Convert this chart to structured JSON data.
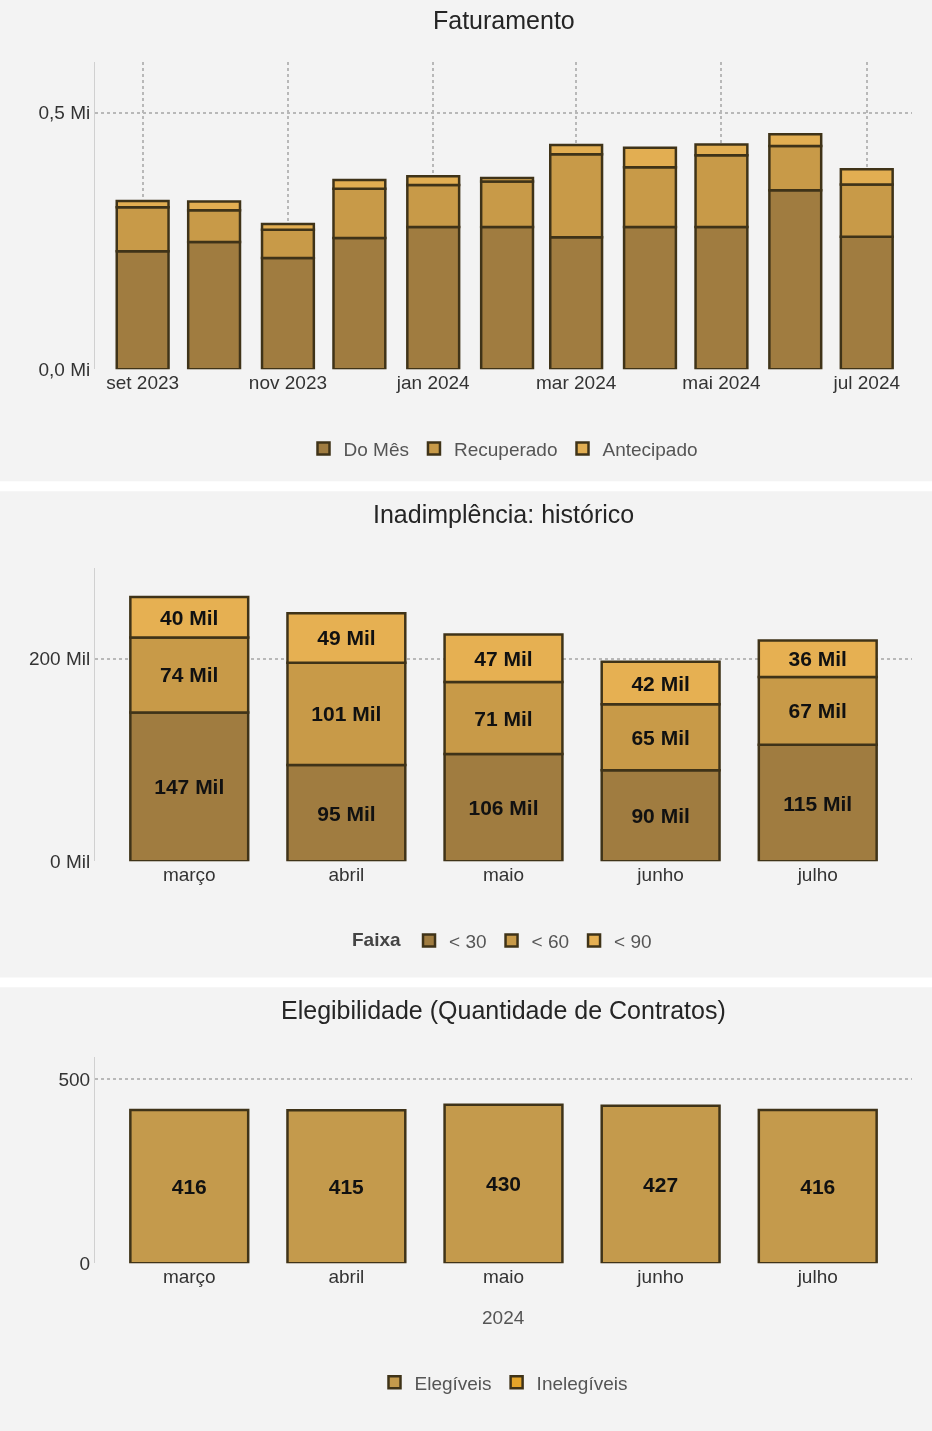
{
  "chart_data": [
    {
      "type": "bar",
      "title": "Faturamento",
      "stacked": true,
      "grid": true,
      "legend": "bottom",
      "x": [
        "2023-09",
        "2023-10",
        "2023-11",
        "2023-12",
        "2024-01",
        "2024-02",
        "2024-03",
        "2024-04",
        "2024-05",
        "2024-06",
        "2024-07"
      ],
      "xlim": [
        "2023-08-12",
        "2024-07-20"
      ],
      "xticks": [
        {
          "value": "2023-09",
          "label": "set 2023"
        },
        {
          "value": "2023-11",
          "label": "nov 2023"
        },
        {
          "value": "2024-01",
          "label": "jan 2024"
        },
        {
          "value": "2024-03",
          "label": "mar 2024"
        },
        {
          "value": "2024-05",
          "label": "mai 2024"
        },
        {
          "value": "2024-07",
          "label": "jul 2024"
        }
      ],
      "ylim": [
        0,
        0.6
      ],
      "yticks": [
        {
          "value": 0,
          "label": "0,0 Mi"
        },
        {
          "value": 0.5,
          "label": "0,5 Mi"
        }
      ],
      "series": [
        {
          "name": "Do Mês",
          "color": "#a07c40",
          "values": [
            0.23,
            0.248,
            0.217,
            0.256,
            0.277,
            0.277,
            0.257,
            0.277,
            0.277,
            0.349,
            0.258
          ]
        },
        {
          "name": "Recuperado",
          "color": "#c89a48",
          "values": [
            0.086,
            0.062,
            0.055,
            0.096,
            0.082,
            0.089,
            0.162,
            0.117,
            0.14,
            0.086,
            0.102
          ]
        },
        {
          "name": "Antecipado",
          "color": "#e2ae52",
          "values": [
            0.012,
            0.017,
            0.011,
            0.017,
            0.017,
            0.007,
            0.018,
            0.038,
            0.021,
            0.023,
            0.03
          ]
        }
      ]
    },
    {
      "type": "bar",
      "title": "Inadimplência: histórico",
      "stacked": true,
      "grid": "y",
      "legend": "bottom",
      "legend_title": "Faixa",
      "categories": [
        "março",
        "abril",
        "maio",
        "junho",
        "julho"
      ],
      "ylim": [
        0,
        290
      ],
      "yticks": [
        {
          "value": 0,
          "label": "0 Mil"
        },
        {
          "value": 200,
          "label": "200 Mil"
        }
      ],
      "series": [
        {
          "name": "< 30",
          "color": "#a07c40",
          "values": [
            147,
            95,
            106,
            90,
            115
          ],
          "value_labels": [
            "147 Mil",
            "95 Mil",
            "106 Mil",
            "90 Mil",
            "115 Mil"
          ]
        },
        {
          "name": "< 60",
          "color": "#c89a48",
          "values": [
            74,
            101,
            71,
            65,
            67
          ],
          "value_labels": [
            "74 Mil",
            "101 Mil",
            "71 Mil",
            "65 Mil",
            "67 Mil"
          ]
        },
        {
          "name": "< 90",
          "color": "#e6b052",
          "values": [
            40,
            49,
            47,
            42,
            36
          ],
          "value_labels": [
            "40 Mil",
            "49 Mil",
            "47 Mil",
            "42 Mil",
            "36 Mil"
          ]
        }
      ]
    },
    {
      "type": "bar",
      "title": "Elegibilidade (Quantidade de Contratos)",
      "stacked": true,
      "grid": "y",
      "legend": "bottom",
      "data_labels": true,
      "categories": [
        "março",
        "abril",
        "maio",
        "junho",
        "julho"
      ],
      "xlabel": "2024",
      "ylim": [
        0,
        560
      ],
      "yticks": [
        0,
        500
      ],
      "series": [
        {
          "name": "Elegíveis",
          "color": "#c49a4c",
          "values": [
            416,
            415,
            430,
            427,
            416
          ]
        },
        {
          "name": "Inelegíveis",
          "color": "#e5a52a",
          "values": [
            null,
            null,
            null,
            null,
            null
          ]
        }
      ]
    }
  ]
}
